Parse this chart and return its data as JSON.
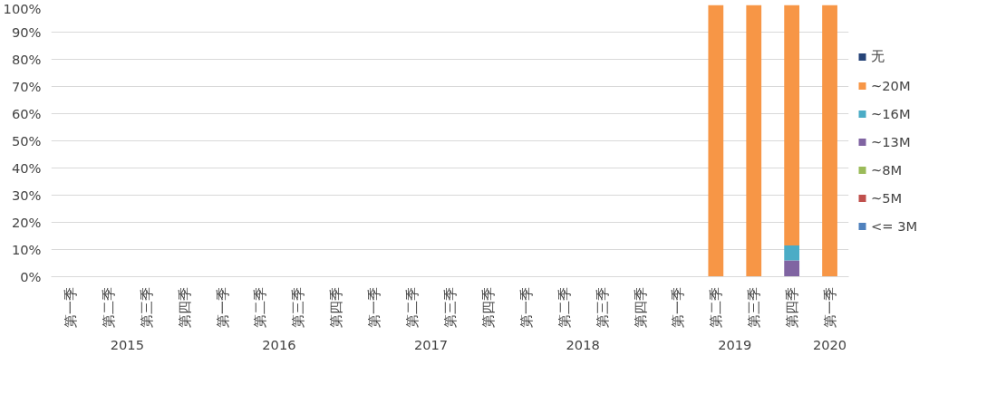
{
  "chart_data": {
    "type": "bar",
    "stacked": true,
    "categories": [
      "第一季",
      "第二季",
      "第三季",
      "第四季",
      "第一季",
      "第二季",
      "第三季",
      "第四季",
      "第一季",
      "第二季",
      "第三季",
      "第四季",
      "第一季",
      "第二季",
      "第三季",
      "第四季",
      "第一季",
      "第二季",
      "第三季",
      "第四季",
      "第一季"
    ],
    "annotations": [
      "2015",
      "2016",
      "2017",
      "2018",
      "2019",
      "2020"
    ],
    "series": [
      {
        "name": "<= 3M",
        "color": "#4f81bd",
        "values": [
          null,
          null,
          null,
          null,
          null,
          null,
          null,
          null,
          null,
          null,
          null,
          null,
          null,
          null,
          null,
          null,
          null,
          null,
          null,
          null,
          null
        ]
      },
      {
        "name": "~5M",
        "color": "#c0504d",
        "values": [
          null,
          null,
          null,
          null,
          null,
          null,
          null,
          null,
          null,
          null,
          null,
          null,
          null,
          null,
          null,
          null,
          null,
          null,
          null,
          null,
          null
        ]
      },
      {
        "name": "~8M",
        "color": "#9bbb59",
        "values": [
          null,
          null,
          null,
          null,
          null,
          null,
          null,
          null,
          null,
          null,
          null,
          null,
          null,
          null,
          null,
          null,
          null,
          null,
          null,
          null,
          null
        ]
      },
      {
        "name": "~13M",
        "color": "#8064a2",
        "values": [
          null,
          null,
          null,
          null,
          null,
          null,
          null,
          null,
          null,
          null,
          null,
          null,
          null,
          null,
          null,
          null,
          null,
          null,
          null,
          6,
          null
        ]
      },
      {
        "name": "~16M",
        "color": "#4bacc6",
        "values": [
          null,
          null,
          null,
          null,
          null,
          null,
          null,
          null,
          null,
          null,
          null,
          null,
          null,
          null,
          null,
          null,
          null,
          null,
          null,
          5.5,
          null
        ]
      },
      {
        "name": "~20M",
        "color": "#f79646",
        "values": [
          null,
          null,
          null,
          null,
          null,
          null,
          null,
          null,
          null,
          null,
          null,
          null,
          null,
          null,
          null,
          null,
          null,
          100,
          100,
          88.5,
          100
        ]
      },
      {
        "name": "无",
        "color": "#264478",
        "values": [
          null,
          null,
          null,
          null,
          null,
          null,
          null,
          null,
          null,
          null,
          null,
          null,
          null,
          null,
          null,
          null,
          null,
          null,
          null,
          null,
          null
        ]
      }
    ],
    "ylim": [
      0,
      100
    ],
    "yticks": [
      {
        "value": 0,
        "label": "0%"
      },
      {
        "value": 10,
        "label": "10%"
      },
      {
        "value": 20,
        "label": "20%"
      },
      {
        "value": 30,
        "label": "30%"
      },
      {
        "value": 40,
        "label": "40%"
      },
      {
        "value": 50,
        "label": "50%"
      },
      {
        "value": 60,
        "label": "60%"
      },
      {
        "value": 70,
        "label": "70%"
      },
      {
        "value": 80,
        "label": "80%"
      },
      {
        "value": 90,
        "label": "90%"
      },
      {
        "value": 100,
        "label": "100%"
      }
    ],
    "grid": "y",
    "legend": "right"
  }
}
